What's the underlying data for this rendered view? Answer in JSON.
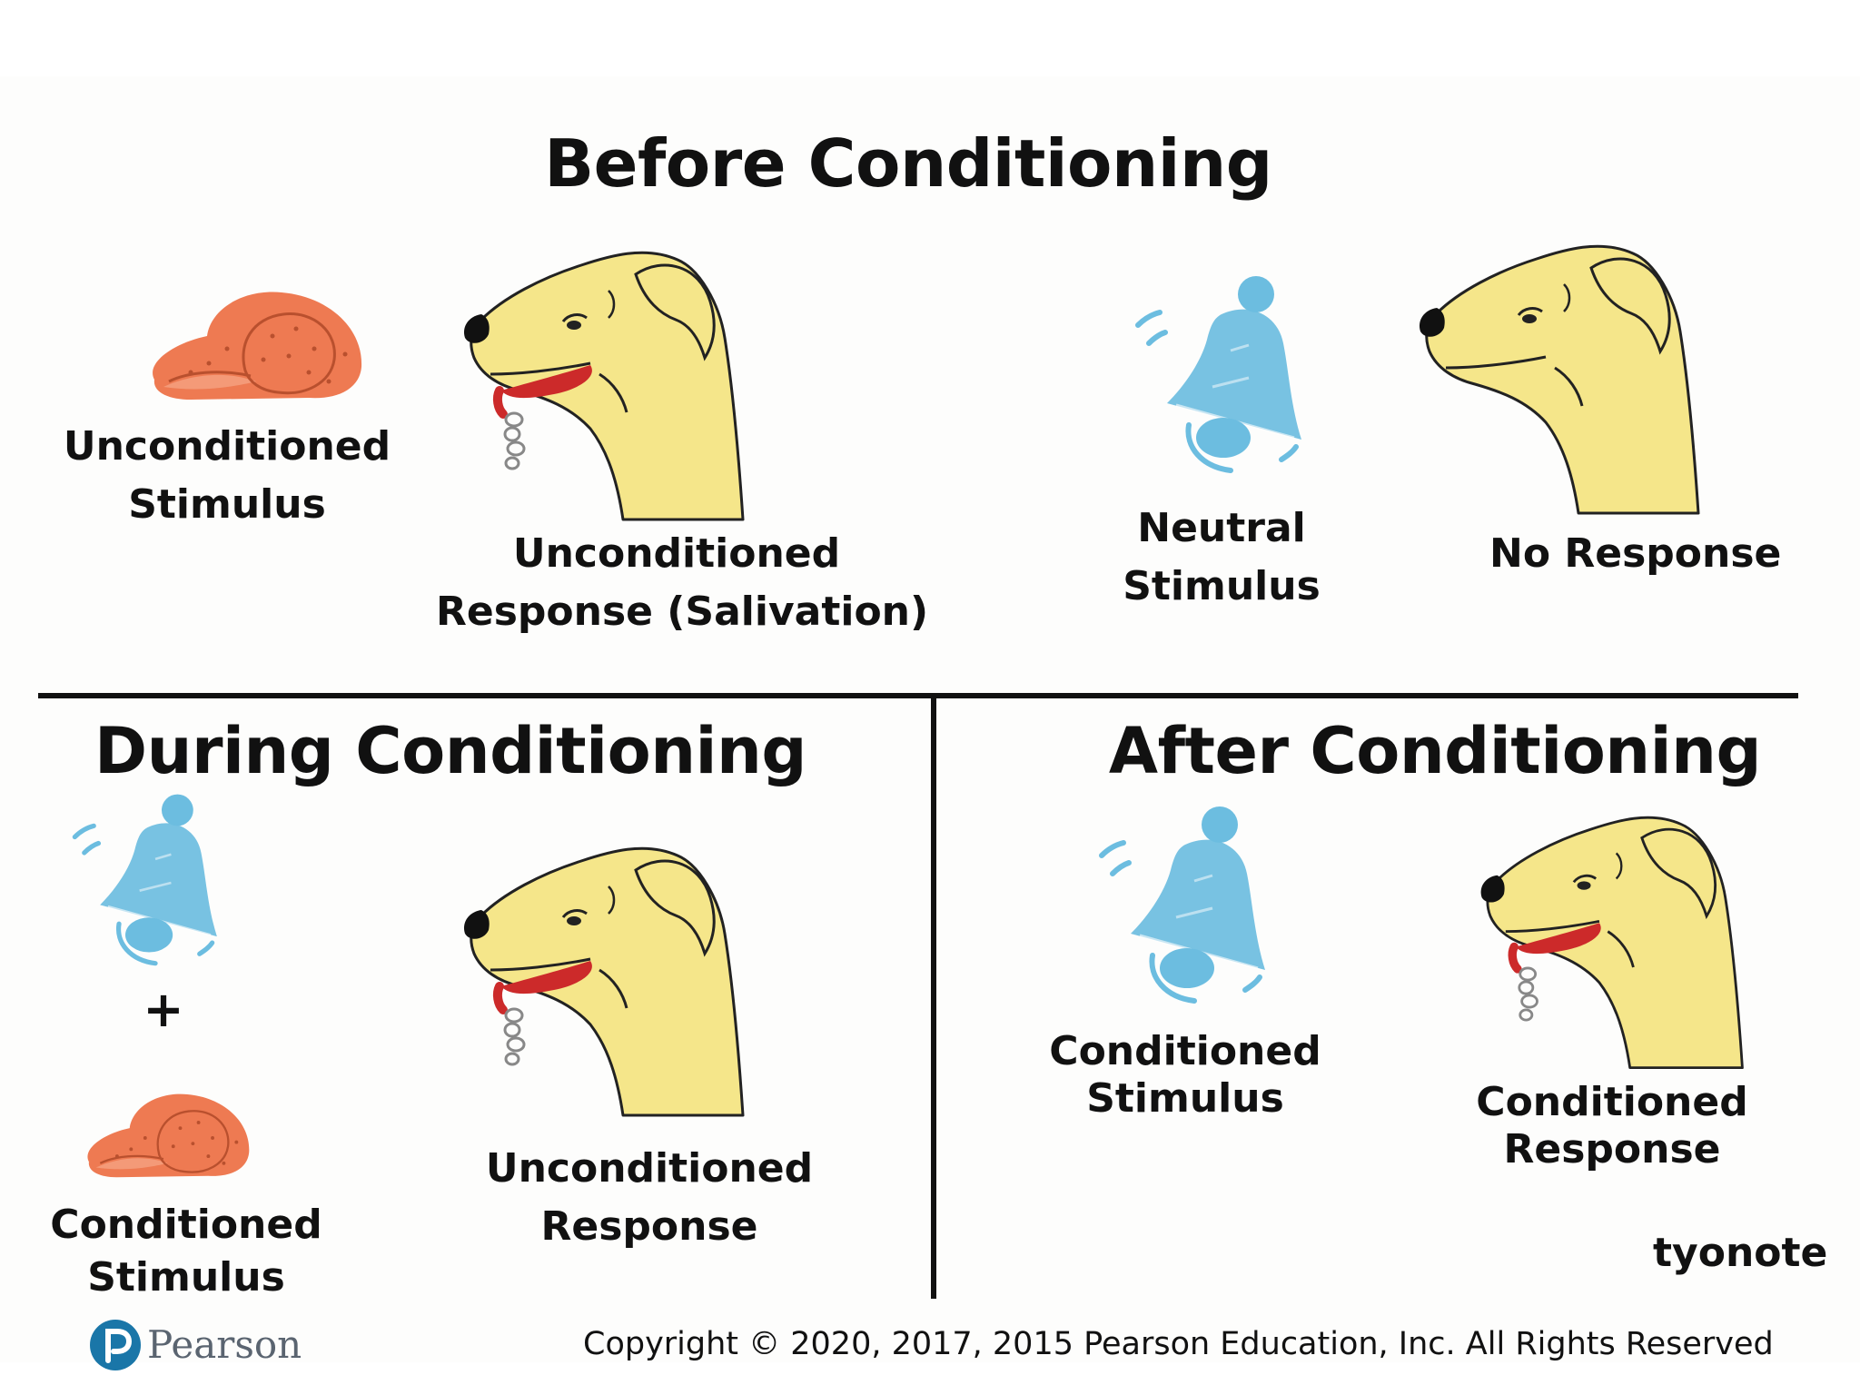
{
  "sections": {
    "before": {
      "title": "Before Conditioning",
      "food_label": [
        "Unconditioned",
        "Stimulus"
      ],
      "dog_label": [
        "Unconditioned",
        "Response (Salivation)"
      ],
      "bell_label": [
        "Neutral",
        "Stimulus"
      ],
      "dog2_label": [
        "No Response"
      ]
    },
    "during": {
      "title": "During Conditioning",
      "plus": "+",
      "food_label": [
        "Conditioned",
        "Stimulus"
      ],
      "dog_label": [
        "Unconditioned",
        "Response"
      ]
    },
    "after": {
      "title": "After Conditioning",
      "bell_label": [
        "Conditioned",
        "Stimulus"
      ],
      "dog_label": [
        "Conditioned",
        "Response"
      ]
    }
  },
  "watermark": "tyonote",
  "footer": {
    "brand": "Pearson",
    "copyright": "Copyright © 2020, 2017, 2015 Pearson Education, Inc. All Rights Reserved"
  },
  "colors": {
    "dog": "#f5e68a",
    "food": "#ee7a52",
    "bell": "#6cbde0",
    "tongue": "#cc2a2a",
    "pearson": "#1a76a8"
  }
}
